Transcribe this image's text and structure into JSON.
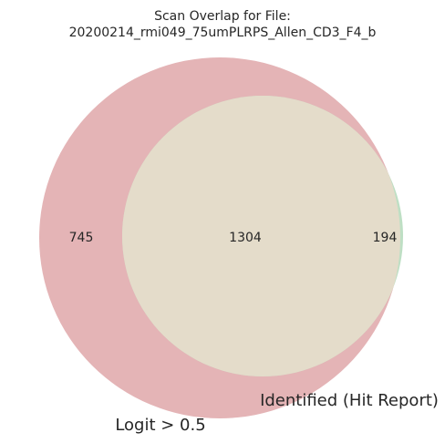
{
  "title_line1": "Scan Overlap for File:",
  "title_line2": "20200214_rmi049_75umPLRPS_Allen_CD3_F4_b",
  "sets": [
    {
      "name": "Logit > 0.5",
      "color": "#e4b4b6"
    },
    {
      "name": "Identified (Hit Report)",
      "color": "#bedfc4"
    }
  ],
  "intersection_color": "#e4dcca",
  "counts": {
    "only_a": "745",
    "both": "1304",
    "only_b": "194"
  }
}
